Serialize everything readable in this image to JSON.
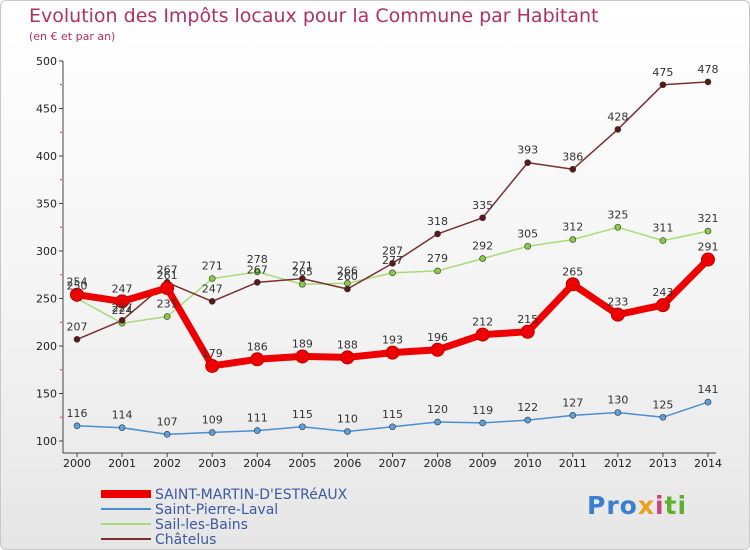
{
  "header": {
    "title": "Evolution des Impôts locaux pour la Commune par Habitant",
    "subtitle": "(en € et par an)"
  },
  "logo": {
    "text": "Proxiti"
  },
  "chart_data": {
    "type": "line",
    "title": "Evolution des Impôts locaux pour la Commune par Habitant",
    "subtitle": "(en € et par an)",
    "xlabel": "",
    "ylabel": "",
    "ylim": [
      100,
      500
    ],
    "yticks": [
      100,
      150,
      200,
      250,
      300,
      350,
      400,
      450,
      500
    ],
    "grid": false,
    "legend_position": "bottom-left",
    "categories": [
      "2000",
      "2001",
      "2002",
      "2003",
      "2004",
      "2005",
      "2006",
      "2007",
      "2008",
      "2009",
      "2010",
      "2011",
      "2012",
      "2013",
      "2014"
    ],
    "series": [
      {
        "name": "SAINT-MARTIN-D'ESTRéAUX",
        "color": "#ee0000",
        "emphasis": true,
        "values": [
          254,
          247,
          261,
          179,
          186,
          189,
          188,
          193,
          196,
          212,
          215,
          265,
          233,
          243,
          291
        ]
      },
      {
        "name": "Saint-Pierre-Laval",
        "color": "#4a8fd0",
        "marker": "#5aa0e0",
        "values": [
          116,
          114,
          107,
          109,
          111,
          115,
          110,
          115,
          120,
          119,
          122,
          127,
          130,
          125,
          141
        ]
      },
      {
        "name": "Sail-les-Bains",
        "color": "#a8dc78",
        "marker": "#88cc44",
        "values": [
          250,
          224,
          231,
          271,
          278,
          265,
          266,
          277,
          279,
          292,
          305,
          312,
          325,
          311,
          321
        ]
      },
      {
        "name": "Châtelus",
        "color": "#7a3030",
        "marker": "#5a1818",
        "values": [
          207,
          227,
          267,
          247,
          267,
          271,
          260,
          287,
          318,
          335,
          393,
          386,
          428,
          475,
          478
        ]
      }
    ]
  }
}
